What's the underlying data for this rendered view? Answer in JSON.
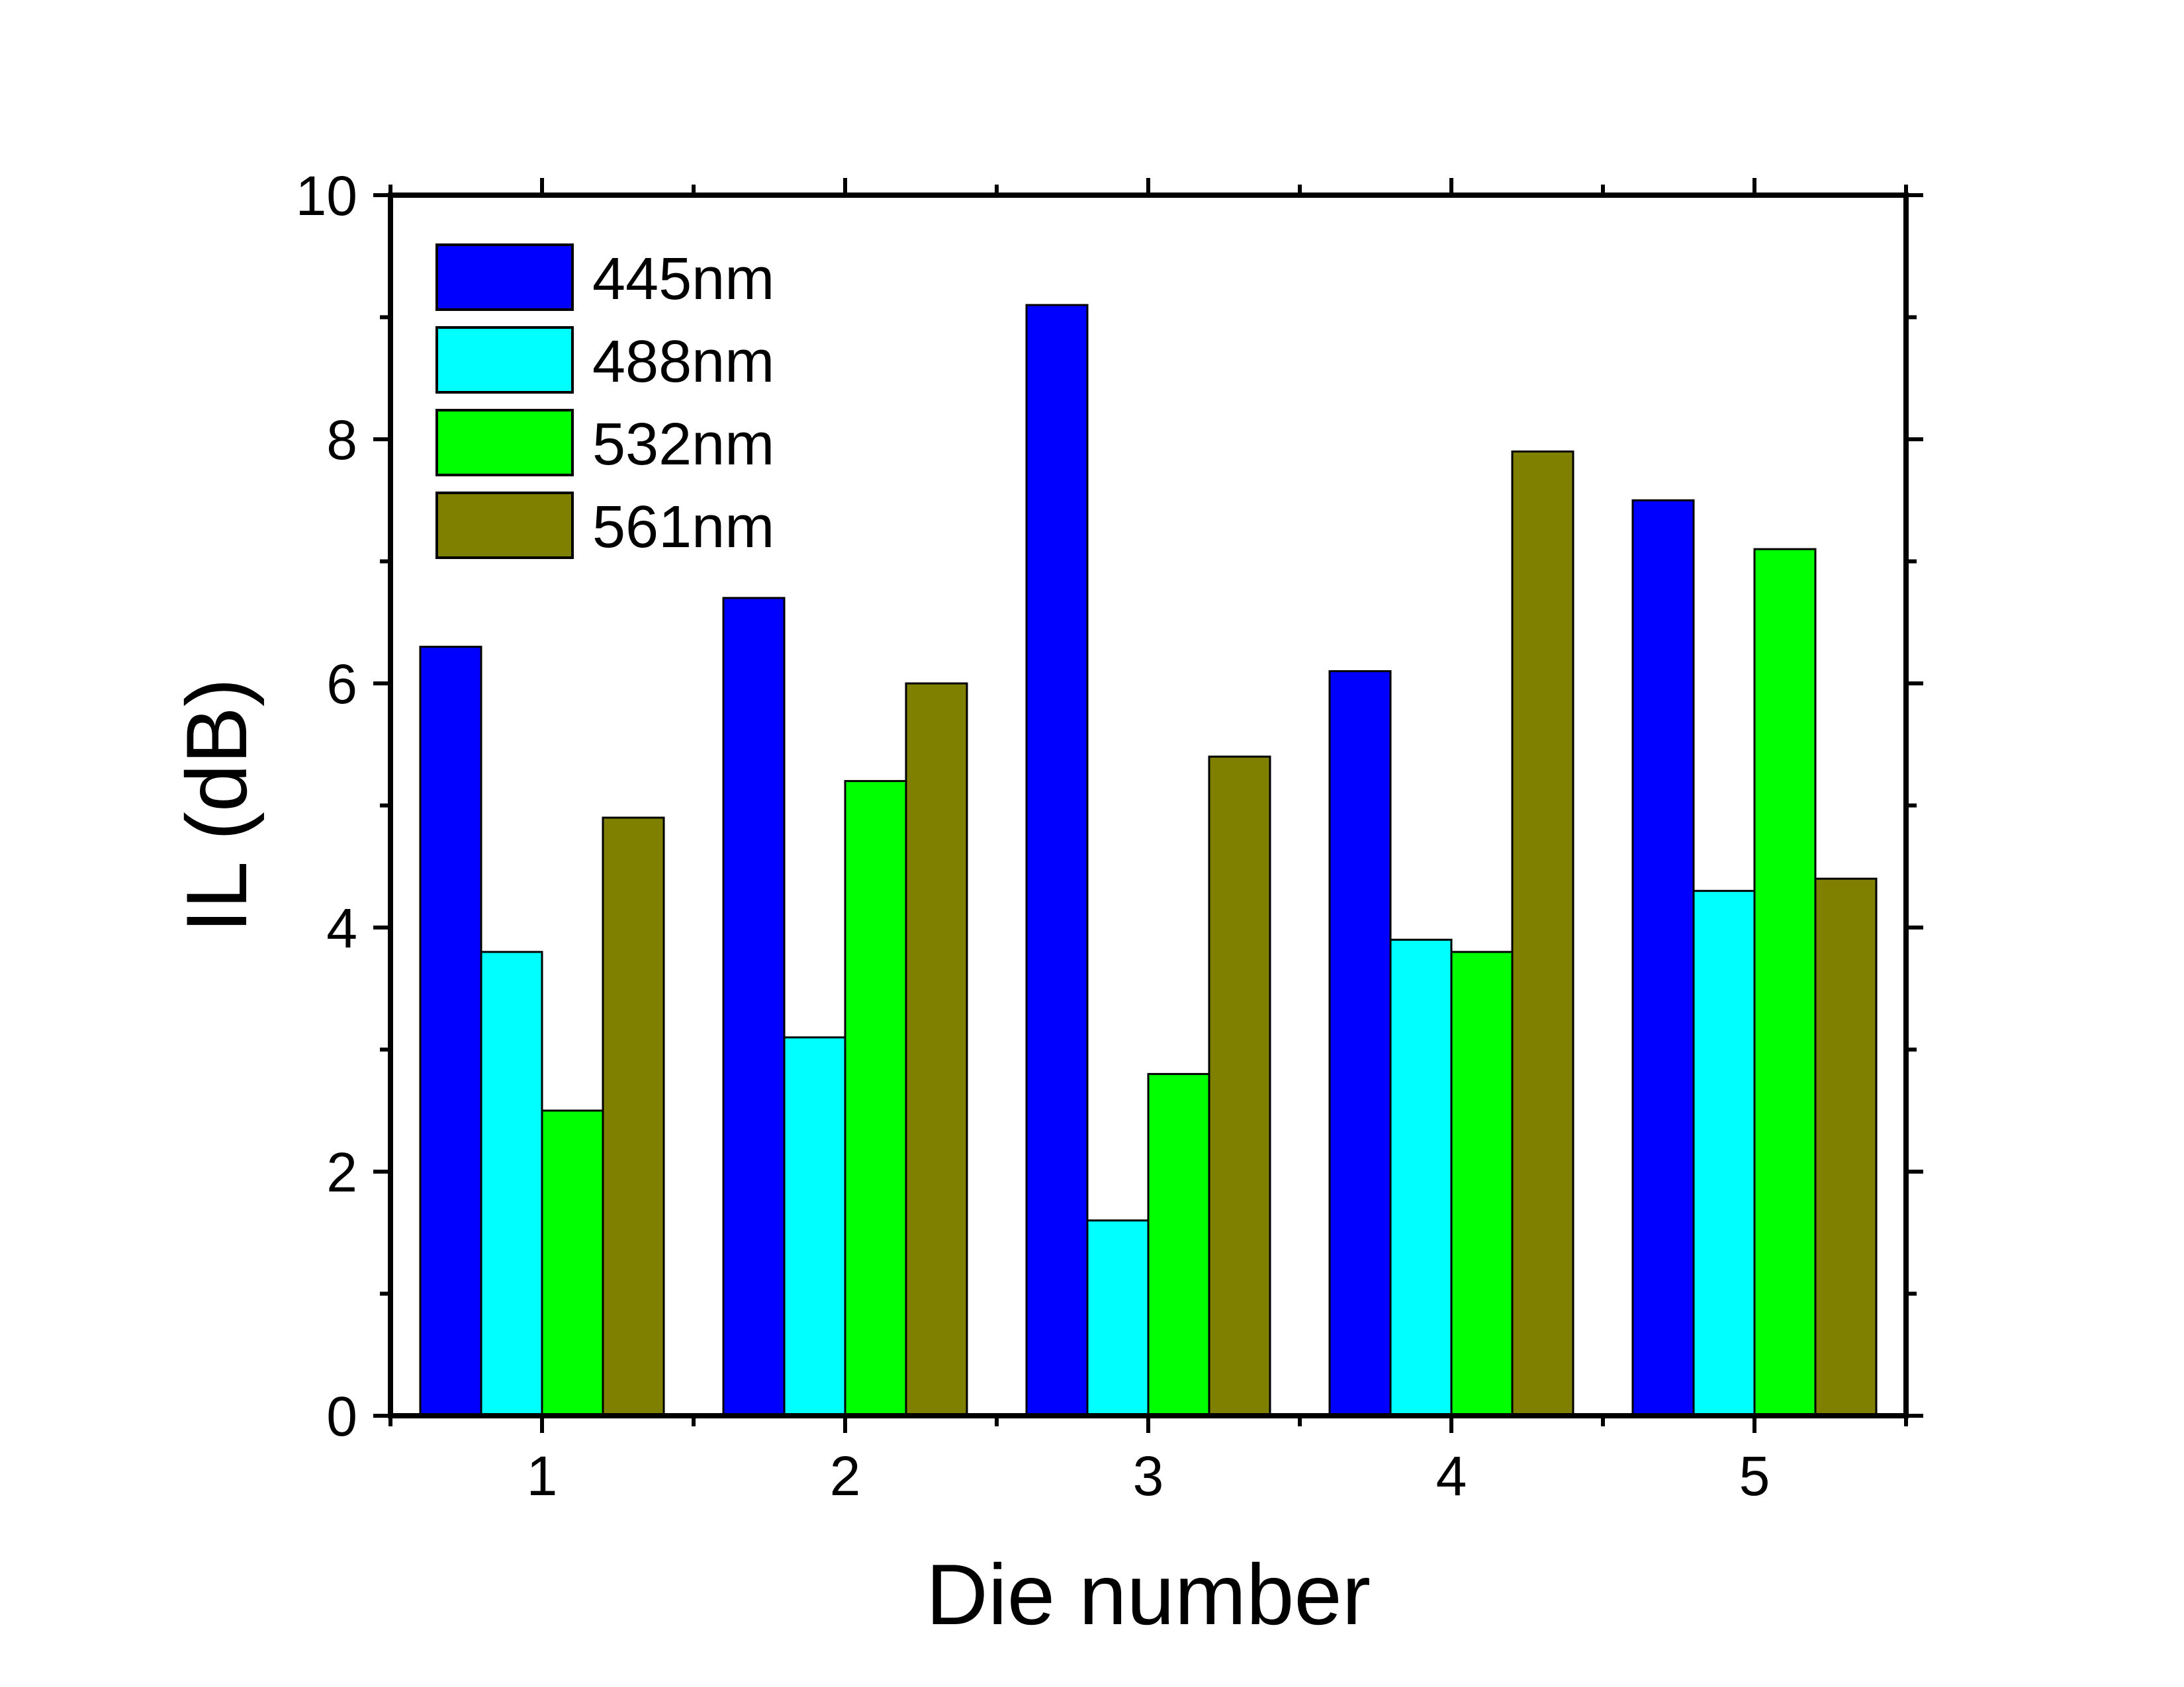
{
  "chart_data": {
    "type": "bar",
    "xlabel": "Die number",
    "ylabel": "IL (dB)",
    "categories": [
      "1",
      "2",
      "3",
      "4",
      "5"
    ],
    "ylim": [
      0,
      10
    ],
    "yticks": [
      "0",
      "2",
      "4",
      "6",
      "8",
      "10"
    ],
    "legend_position": "top-left",
    "grid": false,
    "series": [
      {
        "name": "445nm",
        "color": "#0000ff",
        "values": [
          6.3,
          6.7,
          9.1,
          6.1,
          7.5
        ]
      },
      {
        "name": "488nm",
        "color": "#00ffff",
        "values": [
          3.8,
          3.1,
          1.6,
          3.9,
          4.3
        ]
      },
      {
        "name": "532nm",
        "color": "#00ff00",
        "values": [
          2.5,
          5.2,
          2.8,
          3.8,
          7.1
        ]
      },
      {
        "name": "561nm",
        "color": "#808000",
        "values": [
          4.9,
          6.0,
          5.4,
          7.9,
          4.4
        ]
      }
    ]
  }
}
